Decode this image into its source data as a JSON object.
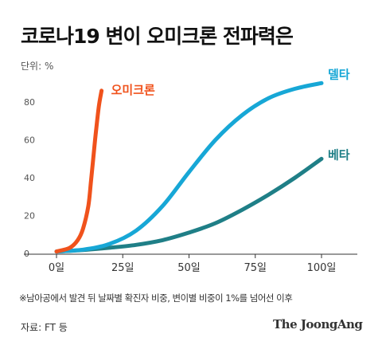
{
  "title": "코로나19 변이 오미크론 전파력은",
  "unit_label": "단위: %",
  "footnote": "※남아공에서 발견 뒤 날짜별 확진자 비중, 변이별 비중이 1%를 넘어선 이후",
  "source": "자료: FT 등",
  "brand": "The JoongAng",
  "chart_data": {
    "type": "line",
    "title": "코로나19 변이 오미크론 전파력은",
    "ylabel": "단위: %",
    "xlim": [
      0,
      115
    ],
    "ylim": [
      0,
      95
    ],
    "x_ticks": [
      0,
      25,
      50,
      75,
      100
    ],
    "x_tick_labels": [
      "0일",
      "25일",
      "50일",
      "75일",
      "100일"
    ],
    "y_ticks": [
      0,
      20,
      40,
      60,
      80
    ],
    "y_tick_labels": [
      "0",
      "20",
      "40",
      "60",
      "80"
    ],
    "grid": false,
    "legend": "inline labels at line ends",
    "series": [
      {
        "name": "오미크론",
        "color": "#f0521c",
        "x": [
          0,
          5,
          8,
          10,
          12,
          13,
          14,
          15,
          16,
          17
        ],
        "y": [
          1,
          3,
          7,
          13,
          25,
          38,
          52,
          66,
          78,
          86
        ]
      },
      {
        "name": "델타",
        "color": "#17a7d6",
        "x": [
          0,
          10,
          20,
          30,
          40,
          50,
          60,
          70,
          80,
          90,
          100
        ],
        "y": [
          1,
          2,
          5,
          12,
          25,
          43,
          60,
          73,
          82,
          87,
          90
        ]
      },
      {
        "name": "베타",
        "color": "#1f7f87",
        "x": [
          0,
          10,
          20,
          30,
          40,
          50,
          60,
          70,
          80,
          90,
          100
        ],
        "y": [
          1,
          1.8,
          3,
          4.5,
          7,
          11,
          16,
          23,
          31,
          40,
          50
        ]
      }
    ]
  }
}
